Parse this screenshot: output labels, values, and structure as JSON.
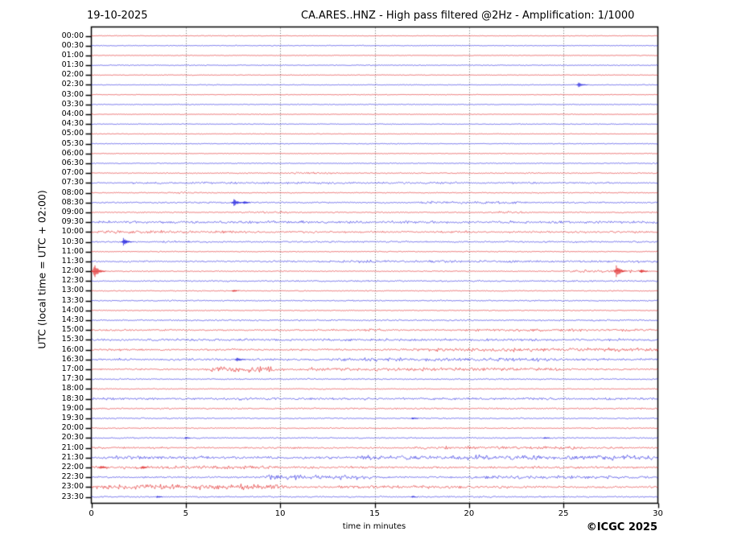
{
  "header": {
    "date": "19-10-2025",
    "title": "CA.ARES..HNZ - High pass filtered @2Hz - Amplification: 1/1000"
  },
  "footer": {
    "copyright": "©ICGC 2025"
  },
  "chart_data": {
    "type": "line",
    "variant": "helicorder-seismogram",
    "title": "CA.ARES..HNZ - High pass filtered @2Hz - Amplification: 1/1000",
    "date": "19-10-2025",
    "xlabel": "time in minutes",
    "ylabel": "UTC (local time = UTC + 02:00)",
    "x_range": [
      0,
      30
    ],
    "x_ticks": [
      0,
      5,
      10,
      15,
      20,
      25,
      30
    ],
    "grid_minutes": [
      5,
      10,
      15,
      20,
      25
    ],
    "row_interval_minutes": 30,
    "grid_on": true,
    "colors": {
      "trace_red": "#dd1111",
      "trace_blue": "#1111dd",
      "grid": "#555555",
      "frame": "#000000",
      "background": "#ffffff"
    },
    "rows": [
      {
        "t": "00:00",
        "c": "r",
        "base": 0.35,
        "seg": [],
        "sp": []
      },
      {
        "t": "00:30",
        "c": "b",
        "base": 0.4,
        "seg": [],
        "sp": []
      },
      {
        "t": "01:00",
        "c": "r",
        "base": 0.35,
        "seg": [],
        "sp": []
      },
      {
        "t": "01:30",
        "c": "b",
        "base": 0.45,
        "seg": [],
        "sp": []
      },
      {
        "t": "02:00",
        "c": "r",
        "base": 0.35,
        "seg": [],
        "sp": []
      },
      {
        "t": "02:30",
        "c": "b",
        "base": 0.4,
        "seg": [],
        "sp": [
          [
            25.8,
            3
          ]
        ]
      },
      {
        "t": "03:00",
        "c": "r",
        "base": 0.35,
        "seg": [],
        "sp": []
      },
      {
        "t": "03:30",
        "c": "b",
        "base": 0.45,
        "seg": [],
        "sp": []
      },
      {
        "t": "04:00",
        "c": "r",
        "base": 0.35,
        "seg": [],
        "sp": []
      },
      {
        "t": "04:30",
        "c": "b",
        "base": 0.4,
        "seg": [],
        "sp": []
      },
      {
        "t": "05:00",
        "c": "r",
        "base": 0.35,
        "seg": [],
        "sp": []
      },
      {
        "t": "05:30",
        "c": "b",
        "base": 0.4,
        "seg": [],
        "sp": []
      },
      {
        "t": "06:00",
        "c": "r",
        "base": 0.35,
        "seg": [],
        "sp": []
      },
      {
        "t": "06:30",
        "c": "b",
        "base": 0.5,
        "seg": [],
        "sp": []
      },
      {
        "t": "07:00",
        "c": "r",
        "base": 0.55,
        "seg": [
          [
            10.5,
            13,
            0.8
          ]
        ],
        "sp": []
      },
      {
        "t": "07:30",
        "c": "b",
        "base": 0.65,
        "seg": [
          [
            2,
            28,
            0.35
          ]
        ],
        "sp": []
      },
      {
        "t": "08:00",
        "c": "r",
        "base": 0.5,
        "seg": [
          [
            4,
            5.5,
            0.6
          ]
        ],
        "sp": []
      },
      {
        "t": "08:30",
        "c": "b",
        "base": 0.75,
        "seg": [
          [
            17,
            23,
            0.6
          ]
        ],
        "sp": [
          [
            7.55,
            5
          ],
          [
            8.1,
            2
          ]
        ]
      },
      {
        "t": "09:00",
        "c": "r",
        "base": 0.6,
        "seg": [
          [
            8.5,
            10.5,
            0.5
          ],
          [
            21,
            23,
            0.5
          ]
        ],
        "sp": []
      },
      {
        "t": "09:30",
        "c": "b",
        "base": 1.0,
        "seg": [
          [
            0,
            30,
            0.35
          ]
        ],
        "sp": []
      },
      {
        "t": "10:00",
        "c": "r",
        "base": 1.0,
        "seg": [
          [
            0,
            8,
            0.5
          ]
        ],
        "sp": []
      },
      {
        "t": "10:30",
        "c": "b",
        "base": 0.85,
        "seg": [
          [
            4,
            6,
            0.5
          ]
        ],
        "sp": [
          [
            1.7,
            4.5
          ]
        ]
      },
      {
        "t": "11:00",
        "c": "r",
        "base": 0.5,
        "seg": [],
        "sp": []
      },
      {
        "t": "11:30",
        "c": "b",
        "base": 0.85,
        "seg": [
          [
            12,
            30,
            0.35
          ]
        ],
        "sp": []
      },
      {
        "t": "12:00",
        "c": "r",
        "base": 0.55,
        "seg": [
          [
            25.2,
            29.3,
            1.1
          ]
        ],
        "sp": [
          [
            0.15,
            9
          ],
          [
            27.8,
            8
          ],
          [
            29.1,
            2.5
          ]
        ]
      },
      {
        "t": "12:30",
        "c": "b",
        "base": 0.75,
        "seg": [],
        "sp": []
      },
      {
        "t": "13:00",
        "c": "r",
        "base": 0.5,
        "seg": [],
        "sp": [
          [
            7.5,
            1.3
          ]
        ]
      },
      {
        "t": "13:30",
        "c": "b",
        "base": 0.65,
        "seg": [],
        "sp": []
      },
      {
        "t": "14:00",
        "c": "r",
        "base": 0.5,
        "seg": [],
        "sp": []
      },
      {
        "t": "14:30",
        "c": "b",
        "base": 0.75,
        "seg": [],
        "sp": []
      },
      {
        "t": "15:00",
        "c": "r",
        "base": 0.85,
        "seg": [
          [
            14.5,
            15.6,
            1.1
          ],
          [
            20,
            30,
            0.5
          ]
        ],
        "sp": []
      },
      {
        "t": "15:30",
        "c": "b",
        "base": 0.95,
        "seg": [
          [
            0,
            30,
            0.3
          ]
        ],
        "sp": []
      },
      {
        "t": "16:00",
        "c": "r",
        "base": 1.05,
        "seg": [
          [
            17,
            30,
            0.8
          ]
        ],
        "sp": []
      },
      {
        "t": "16:30",
        "c": "b",
        "base": 1.15,
        "seg": [
          [
            13,
            25,
            0.8
          ]
        ],
        "sp": [
          [
            7.7,
            2.8
          ]
        ]
      },
      {
        "t": "17:00",
        "c": "r",
        "base": 0.95,
        "seg": [
          [
            6.2,
            10,
            2.2
          ],
          [
            10.5,
            25,
            0.8
          ]
        ],
        "sp": []
      },
      {
        "t": "17:30",
        "c": "b",
        "base": 0.7,
        "seg": [],
        "sp": []
      },
      {
        "t": "18:00",
        "c": "r",
        "base": 0.5,
        "seg": [],
        "sp": []
      },
      {
        "t": "18:30",
        "c": "b",
        "base": 0.95,
        "seg": [
          [
            0,
            30,
            0.3
          ]
        ],
        "sp": []
      },
      {
        "t": "19:00",
        "c": "r",
        "base": 0.75,
        "seg": [],
        "sp": []
      },
      {
        "t": "19:30",
        "c": "b",
        "base": 0.65,
        "seg": [],
        "sp": [
          [
            17,
            1.4
          ]
        ]
      },
      {
        "t": "20:00",
        "c": "r",
        "base": 0.55,
        "seg": [],
        "sp": []
      },
      {
        "t": "20:30",
        "c": "b",
        "base": 0.65,
        "seg": [],
        "sp": [
          [
            5,
            1.4
          ],
          [
            24,
            1.3
          ]
        ]
      },
      {
        "t": "21:00",
        "c": "r",
        "base": 0.95,
        "seg": [
          [
            17,
            26,
            0.6
          ]
        ],
        "sp": []
      },
      {
        "t": "21:30",
        "c": "b",
        "base": 1.25,
        "seg": [
          [
            1,
            6,
            0.5
          ],
          [
            14,
            30,
            1.2
          ]
        ],
        "sp": []
      },
      {
        "t": "22:00",
        "c": "r",
        "base": 1.15,
        "seg": [
          [
            0,
            10,
            0.5
          ]
        ],
        "sp": [
          [
            0.5,
            2.4
          ],
          [
            2.7,
            2
          ]
        ]
      },
      {
        "t": "22:30",
        "c": "b",
        "base": 0.95,
        "seg": [
          [
            9,
            15,
            1.7
          ],
          [
            20,
            30,
            0.7
          ]
        ],
        "sp": []
      },
      {
        "t": "23:00",
        "c": "r",
        "base": 1.05,
        "seg": [
          [
            0,
            10.5,
            1.7
          ],
          [
            13,
            23,
            0.6
          ]
        ],
        "sp": []
      },
      {
        "t": "23:30",
        "c": "b",
        "base": 0.75,
        "seg": [],
        "sp": [
          [
            3.5,
            1.4
          ],
          [
            17,
            1.2
          ]
        ]
      }
    ]
  }
}
